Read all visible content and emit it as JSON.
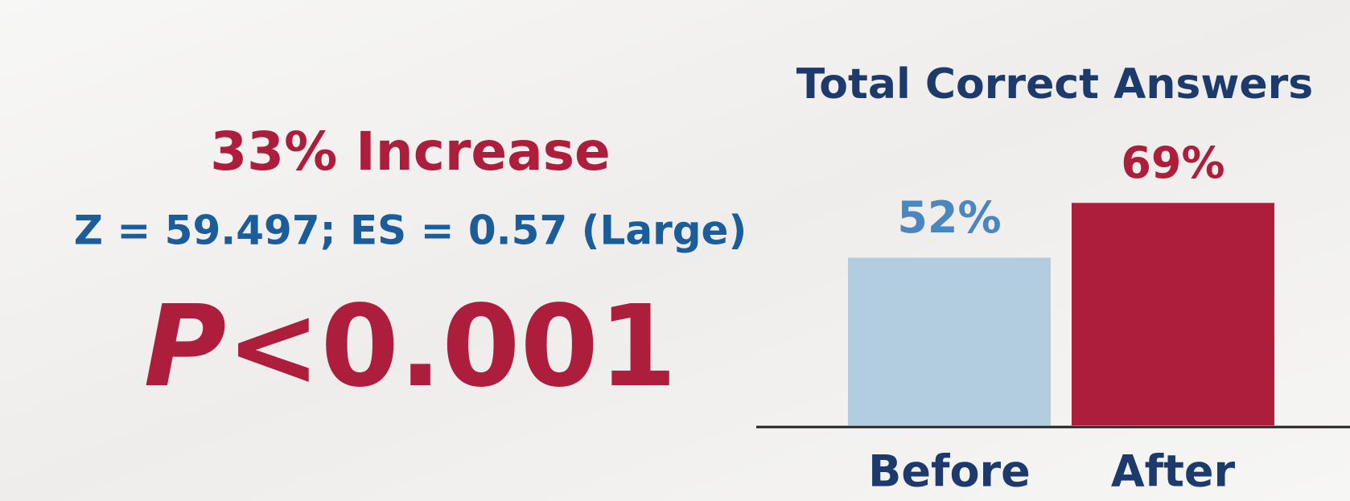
{
  "chart_data": {
    "type": "bar",
    "title": "Total Correct Answers",
    "categories": [
      "Before",
      "After"
    ],
    "values": [
      52,
      69
    ],
    "value_labels": [
      "52%",
      "69%"
    ],
    "colors": [
      "#b3cde0",
      "#ad1d3c"
    ],
    "label_colors": [
      "#4a86c0",
      "#ad1d3c"
    ],
    "ylim": [
      0,
      100
    ],
    "annotations": [
      "33% Increase",
      "Z = 59.497; ES = 0.57 (Large)",
      "P",
      "<0.001"
    ]
  }
}
